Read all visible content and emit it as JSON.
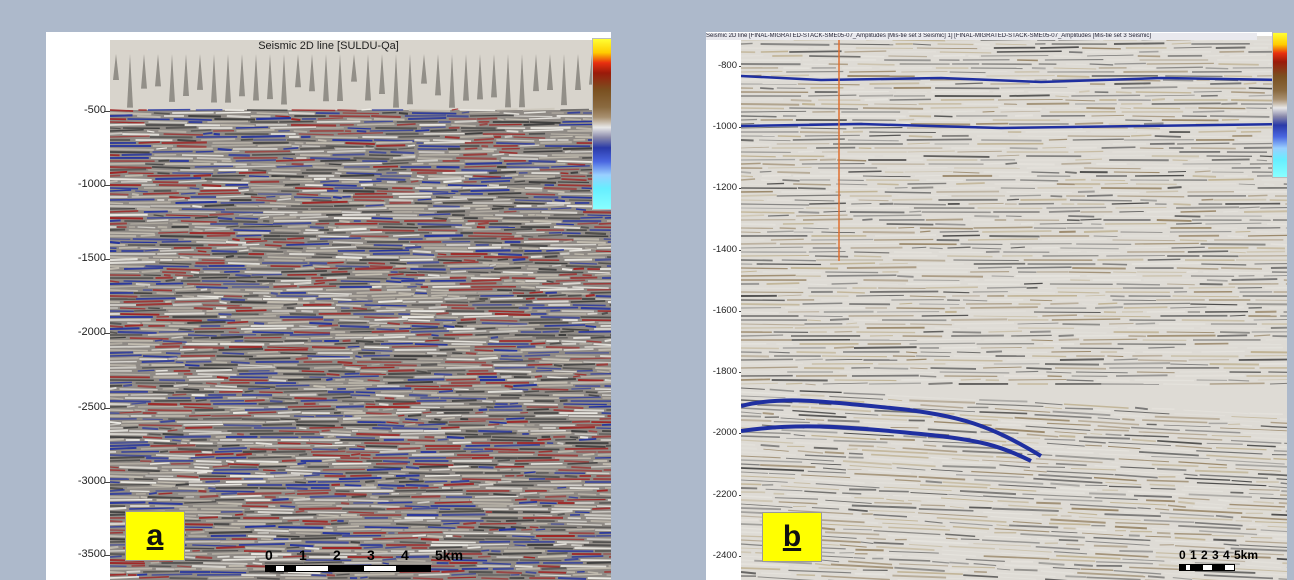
{
  "panel_a": {
    "title": "Seismic 2D line [SULDU-Qa]",
    "letter": "a",
    "depth_labels": [
      "-500",
      "-1000",
      "-1500",
      "-2000",
      "-2500",
      "-3000",
      "-3500"
    ],
    "scale_labels": [
      "0",
      "1",
      "2",
      "3",
      "4",
      "5km"
    ]
  },
  "panel_b": {
    "title": "Seismic 2D line [FINAL-MIGRATED-STACK-SME05-07_Amplitudes [Mis-tie set 3 Seismic] 1] [FINAL-MIGRATED-STACK-SME05-07_Amplitudes [Mis-tie set 3 Seismic]",
    "letter": "b",
    "depth_labels": [
      "-800",
      "-1000",
      "-1200",
      "-1400",
      "-1600",
      "-1800",
      "-2000",
      "-2200",
      "-2400"
    ],
    "scale_labels": [
      "0",
      "1",
      "2",
      "3",
      "4",
      "5km"
    ]
  },
  "colors": {
    "background": "#adb9cb",
    "label_box": "#ffff00",
    "reflector_blue": "#1f2fa0",
    "reflector_red": "#a02020",
    "well_trace": "#e07030"
  }
}
